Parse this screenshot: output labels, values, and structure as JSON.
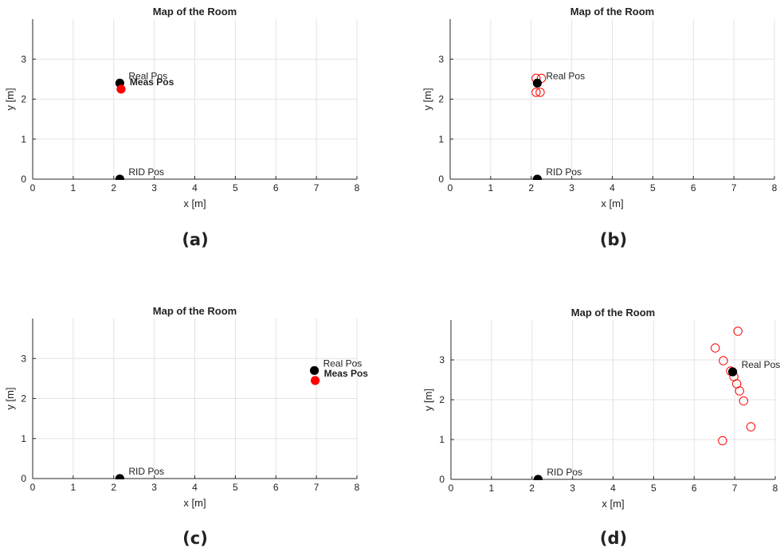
{
  "colors": {
    "real": "#000000",
    "measured": "#ff0000",
    "rid": "#000000",
    "grid": "#e3e3e3",
    "axis": "#262626"
  },
  "chart_data": [
    {
      "type": "scatter",
      "id": "a",
      "caption": "(a)",
      "title": "Map of the Room",
      "xlabel": "x [m]",
      "ylabel": "y [m]",
      "xlim": [
        0,
        8
      ],
      "ylim": [
        0,
        4
      ],
      "xticks": [
        0,
        1,
        2,
        3,
        4,
        5,
        6,
        7,
        8
      ],
      "yticks": [
        0,
        1,
        2,
        3
      ],
      "grid": true,
      "points": [
        {
          "name": "Real Pos",
          "x": 2.15,
          "y": 2.4,
          "style": "filled",
          "color": "#000000",
          "label": "Real Pos"
        },
        {
          "name": "Meas Pos",
          "x": 2.18,
          "y": 2.25,
          "style": "filled",
          "color": "#ff0000",
          "label": "Meas Pos",
          "label_bold": true
        },
        {
          "name": "RID Pos",
          "x": 2.15,
          "y": 0.0,
          "style": "filled",
          "color": "#000000",
          "label": "RID Pos"
        }
      ],
      "samples": []
    },
    {
      "type": "scatter",
      "id": "b",
      "caption": "(b)",
      "title": "Map of the Room",
      "xlabel": "x [m]",
      "ylabel": "y [m]",
      "xlim": [
        0,
        8
      ],
      "ylim": [
        0,
        4
      ],
      "xticks": [
        0,
        1,
        2,
        3,
        4,
        5,
        6,
        7,
        8
      ],
      "yticks": [
        0,
        1,
        2,
        3
      ],
      "grid": true,
      "points": [
        {
          "name": "Real Pos",
          "x": 2.15,
          "y": 2.4,
          "style": "filled",
          "color": "#000000",
          "label": "Real Pos"
        },
        {
          "name": "RID Pos",
          "x": 2.15,
          "y": 0.0,
          "style": "filled",
          "color": "#000000",
          "label": "RID Pos"
        }
      ],
      "samples": [
        {
          "x": 2.12,
          "y": 2.52
        },
        {
          "x": 2.25,
          "y": 2.52
        },
        {
          "x": 2.12,
          "y": 2.17
        },
        {
          "x": 2.22,
          "y": 2.17
        }
      ]
    },
    {
      "type": "scatter",
      "id": "c",
      "caption": "(c)",
      "title": "Map of the Room",
      "xlabel": "x [m]",
      "ylabel": "y [m]",
      "xlim": [
        0,
        8
      ],
      "ylim": [
        0,
        4
      ],
      "xticks": [
        0,
        1,
        2,
        3,
        4,
        5,
        6,
        7,
        8
      ],
      "yticks": [
        0,
        1,
        2,
        3
      ],
      "grid": true,
      "points": [
        {
          "name": "Real Pos",
          "x": 6.95,
          "y": 2.7,
          "style": "filled",
          "color": "#000000",
          "label": "Real Pos"
        },
        {
          "name": "Meas Pos",
          "x": 6.97,
          "y": 2.45,
          "style": "filled",
          "color": "#ff0000",
          "label": "Meas Pos",
          "label_bold": true
        },
        {
          "name": "RID Pos",
          "x": 2.15,
          "y": 0.0,
          "style": "filled",
          "color": "#000000",
          "label": "RID Pos"
        }
      ],
      "samples": []
    },
    {
      "type": "scatter",
      "id": "d",
      "caption": "(d)",
      "title": "Map of the Room",
      "xlabel": "x [m]",
      "ylabel": "y [m]",
      "xlim": [
        0,
        8
      ],
      "ylim": [
        0,
        4
      ],
      "xticks": [
        0,
        1,
        2,
        3,
        4,
        5,
        6,
        7,
        8
      ],
      "yticks": [
        0,
        1,
        2,
        3
      ],
      "grid": true,
      "points": [
        {
          "name": "Real Pos",
          "x": 6.95,
          "y": 2.7,
          "style": "filled",
          "color": "#000000",
          "label": "Real Pos"
        },
        {
          "name": "RID Pos",
          "x": 2.15,
          "y": 0.0,
          "style": "filled",
          "color": "#000000",
          "label": "RID Pos"
        }
      ],
      "samples": [
        {
          "x": 7.08,
          "y": 3.72
        },
        {
          "x": 6.52,
          "y": 3.3
        },
        {
          "x": 6.72,
          "y": 2.98
        },
        {
          "x": 6.9,
          "y": 2.72
        },
        {
          "x": 6.98,
          "y": 2.58
        },
        {
          "x": 7.05,
          "y": 2.4
        },
        {
          "x": 7.12,
          "y": 2.22
        },
        {
          "x": 7.22,
          "y": 1.97
        },
        {
          "x": 7.4,
          "y": 1.32
        },
        {
          "x": 6.7,
          "y": 0.97
        }
      ]
    }
  ]
}
